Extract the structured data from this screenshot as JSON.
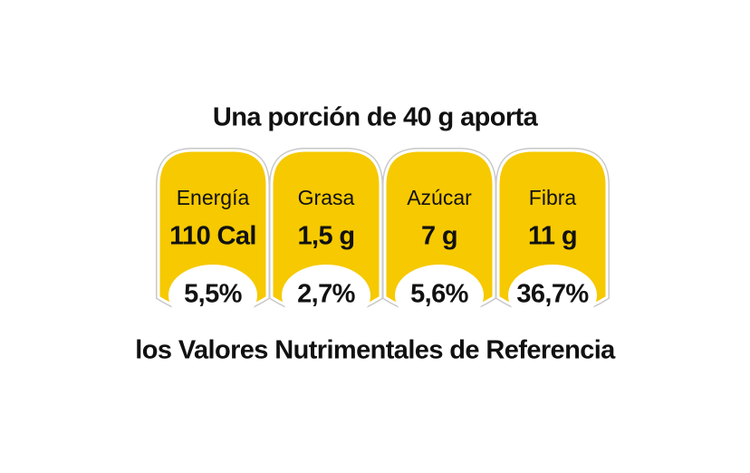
{
  "header": {
    "title": "Una porción de 40 g aporta"
  },
  "items": [
    {
      "name": "Energía",
      "amount": "110 Cal",
      "percent": "5,5%"
    },
    {
      "name": "Grasa",
      "amount": "1,5 g",
      "percent": "2,7%"
    },
    {
      "name": "Azúcar",
      "amount": "7 g",
      "percent": "5,6%"
    },
    {
      "name": "Fibra",
      "amount": "11 g",
      "percent": "36,7%"
    }
  ],
  "footer": {
    "text": "los Valores Nutrimentales de Referencia"
  }
}
